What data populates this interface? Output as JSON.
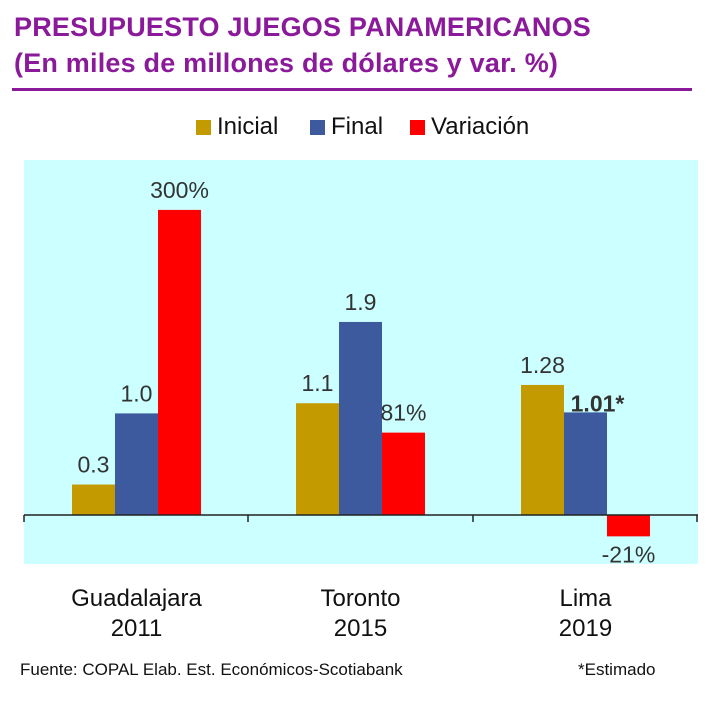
{
  "header": {
    "title": "PRESUPUESTO JUEGOS PANAMERICANOS",
    "subtitle": "(En miles de millones de dólares y var. %)"
  },
  "footer": {
    "source": "Fuente: COPAL  Elab. Est. Económicos-Scotiabank",
    "note": "*Estimado"
  },
  "chart_data": {
    "type": "bar",
    "title": "PRESUPUESTO JUEGOS PANAMERICANOS",
    "subtitle": "(En miles de millones de dólares y var. %)",
    "categories": [
      {
        "line1": "Guadalajara",
        "line2": "2011"
      },
      {
        "line1": "Toronto",
        "line2": "2015"
      },
      {
        "line1": "Lima",
        "line2": "2019"
      }
    ],
    "series": [
      {
        "name": "Inicial",
        "color": "#C39A00",
        "values": [
          0.3,
          1.1,
          1.28
        ],
        "labels": [
          "0.3",
          "1.1",
          "1.28"
        ]
      },
      {
        "name": "Final",
        "color": "#3D5A9E",
        "values": [
          1.0,
          1.9,
          1.01
        ],
        "labels": [
          "1.0",
          "1.9",
          "1.01*"
        ]
      },
      {
        "name": "Variación",
        "color": "#FF0000",
        "values": [
          300,
          81,
          -21
        ],
        "labels": [
          "300%",
          "81%",
          "-21%"
        ]
      }
    ],
    "plot_background": "#CCFFFF",
    "legend_position": "top-center",
    "grid": false
  }
}
